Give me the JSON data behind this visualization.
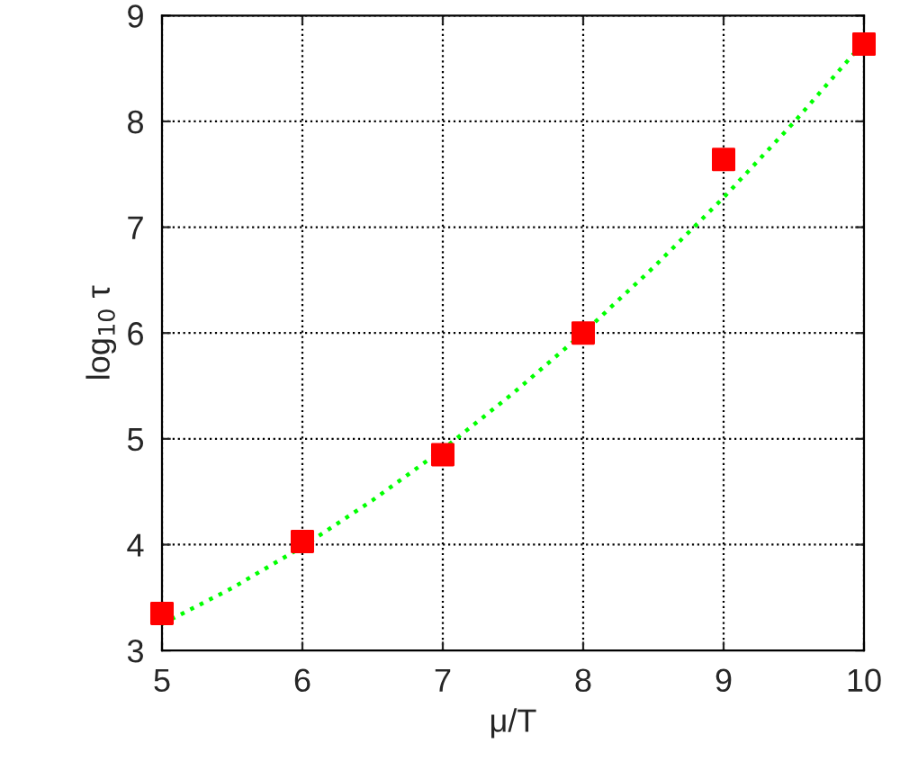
{
  "chart_data": {
    "type": "scatter",
    "xlabel": "μ/T",
    "ylabel": "log$_{10}$ τ",
    "xlim": [
      5,
      10
    ],
    "ylim": [
      3,
      9
    ],
    "xticks": [
      5,
      6,
      7,
      8,
      9,
      10
    ],
    "yticks": [
      3,
      4,
      5,
      6,
      7,
      8,
      9
    ],
    "grid": true,
    "series": [
      {
        "color": "#ff0000",
        "marker": "square",
        "x": [
          5,
          6,
          7,
          8,
          9,
          10
        ],
        "values": [
          3.35,
          4.03,
          4.85,
          6.0,
          7.64,
          8.73
        ]
      },
      {
        "type": "line",
        "color": "#00ff00",
        "line_style": "dotted",
        "marker": "none",
        "x": [
          5,
          5.5,
          6,
          6.5,
          7,
          7.5,
          8,
          8.5,
          9,
          9.5,
          10
        ],
        "values": [
          3.25,
          3.59,
          3.98,
          4.42,
          4.9,
          5.43,
          6.0,
          6.62,
          7.28,
          7.99,
          8.75
        ]
      }
    ]
  }
}
